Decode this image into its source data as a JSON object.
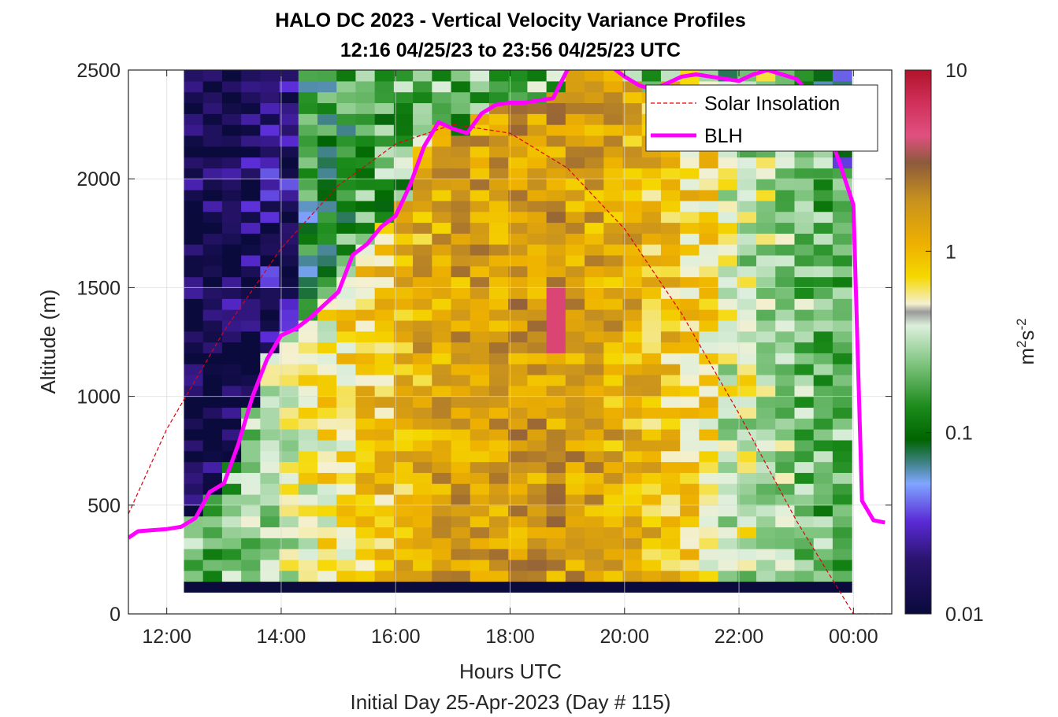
{
  "chart_data": {
    "type": "heatmap",
    "title": "HALO DC 2023 - Vertical Velocity Variance Profiles",
    "subtitle": "12:16 04/25/23 to 23:56 04/25/23  UTC",
    "xlabel": "Hours UTC",
    "xlabel2": "Initial Day 25-Apr-2023 (Day # 115)",
    "ylabel": "Altitude (m)",
    "xlim": [
      11.33,
      24.67
    ],
    "ylim": [
      0,
      2500
    ],
    "x_ticks": [
      12,
      14,
      16,
      18,
      20,
      22,
      24
    ],
    "x_tick_labels": [
      "12:00",
      "14:00",
      "16:00",
      "18:00",
      "20:00",
      "22:00",
      "00:00"
    ],
    "y_ticks": [
      0,
      500,
      1000,
      1500,
      2000,
      2500
    ],
    "y_tick_labels": [
      "0",
      "500",
      "1000",
      "1500",
      "2000",
      "2500"
    ],
    "grid": true,
    "legend_position": "top-right",
    "colorbar": {
      "label_base": "m",
      "label_sup1": "2",
      "label_mid": "s",
      "label_sup2": "-2",
      "scale": "log",
      "range": [
        0.01,
        10
      ],
      "tick_labels": [
        "0.01",
        "0.1",
        "1",
        "10"
      ],
      "tick_values": [
        0.01,
        0.1,
        1,
        10
      ]
    },
    "heatmap": {
      "x_start_hour": 12.3,
      "x_end_hour": 23.97,
      "bin_minutes": 20,
      "y_start_m": 100,
      "y_end_m": 2500,
      "y_bin_m": 50,
      "value_description": "log10 vertical velocity variance; low near-surface row ~0.01 (dark navy); convective core 14:30-21:30 ~0.5-3 m2 s-2 (yellow/brown) up to ~5 near 18:50 and 1200-1500 m; early morning above BLH ~0.01-0.05",
      "profiles": [
        {
          "time": "12:20",
          "values_by_range": [
            {
              "from": 100,
              "to": 150,
              "v": 0.01
            },
            {
              "from": 150,
              "to": 450,
              "v": 0.6
            },
            {
              "from": 450,
              "to": 600,
              "v": 0.08
            },
            {
              "from": 600,
              "to": 2500,
              "v": 0.015
            }
          ]
        },
        {
          "time": "14:00",
          "values_by_range": [
            {
              "from": 100,
              "to": 150,
              "v": 0.01
            },
            {
              "from": 150,
              "to": 1100,
              "v": 0.7
            },
            {
              "from": 1100,
              "to": 1400,
              "v": 0.1
            },
            {
              "from": 1400,
              "to": 2500,
              "v": 0.012
            }
          ]
        },
        {
          "time": "16:00",
          "values_by_range": [
            {
              "from": 100,
              "to": 150,
              "v": 0.01
            },
            {
              "from": 150,
              "to": 1700,
              "v": 1.3
            },
            {
              "from": 1700,
              "to": 2000,
              "v": 0.25
            },
            {
              "from": 2000,
              "to": 2500,
              "v": 0.07
            }
          ]
        },
        {
          "time": "18:50",
          "values_by_range": [
            {
              "from": 100,
              "to": 150,
              "v": 0.01
            },
            {
              "from": 150,
              "to": 1200,
              "v": 2.2
            },
            {
              "from": 1200,
              "to": 1500,
              "v": 5.0
            },
            {
              "from": 1500,
              "to": 2500,
              "v": 1.5
            }
          ]
        },
        {
          "time": "21:00",
          "values_by_range": [
            {
              "from": 100,
              "to": 150,
              "v": 0.01
            },
            {
              "from": 150,
              "to": 2500,
              "v": 0.5
            }
          ]
        },
        {
          "time": "23:40",
          "values_by_range": [
            {
              "from": 100,
              "to": 150,
              "v": 0.01
            },
            {
              "from": 150,
              "to": 2500,
              "v": 0.15
            }
          ]
        }
      ]
    },
    "series": [
      {
        "name": "Solar Insolation",
        "style": "dashed",
        "color": "#e0000f",
        "x": [
          11.33,
          12.0,
          13.0,
          14.0,
          15.0,
          16.0,
          17.0,
          18.0,
          19.0,
          20.0,
          21.0,
          22.0,
          23.0,
          24.0,
          24.67
        ],
        "y": [
          460,
          850,
          1300,
          1680,
          1970,
          2160,
          2250,
          2210,
          2050,
          1770,
          1380,
          920,
          430,
          0,
          0
        ]
      },
      {
        "name": "BLH",
        "style": "solid",
        "color": "#ff00ff",
        "x": [
          11.33,
          11.5,
          12.0,
          12.25,
          12.5,
          12.75,
          13.0,
          13.25,
          13.5,
          13.75,
          14.0,
          14.25,
          14.5,
          14.75,
          15.0,
          15.25,
          15.5,
          15.75,
          16.0,
          16.25,
          16.5,
          16.75,
          17.0,
          17.25,
          17.5,
          17.75,
          18.0,
          18.25,
          18.5,
          18.75,
          19.0,
          19.25,
          19.5,
          19.75,
          20.0,
          20.25,
          20.5,
          20.75,
          21.0,
          21.25,
          21.5,
          21.75,
          22.0,
          22.25,
          22.5,
          22.75,
          23.0,
          23.25,
          23.5,
          23.75,
          24.0,
          24.15,
          24.35,
          24.55
        ],
        "y": [
          350,
          380,
          390,
          400,
          440,
          560,
          600,
          780,
          1000,
          1170,
          1280,
          1310,
          1360,
          1420,
          1480,
          1650,
          1700,
          1780,
          1830,
          1970,
          2150,
          2260,
          2230,
          2210,
          2300,
          2340,
          2350,
          2350,
          2360,
          2370,
          2500,
          2550,
          2560,
          2520,
          2470,
          2430,
          2410,
          2440,
          2470,
          2480,
          2470,
          2460,
          2450,
          2480,
          2500,
          2480,
          2460,
          2390,
          2260,
          2080,
          1880,
          520,
          430,
          420
        ]
      }
    ],
    "legend": [
      {
        "label": "Solar Insolation",
        "style": "dashed",
        "color": "#e0000f"
      },
      {
        "label": "BLH",
        "style": "solid",
        "color": "#ff00ff"
      }
    ]
  }
}
